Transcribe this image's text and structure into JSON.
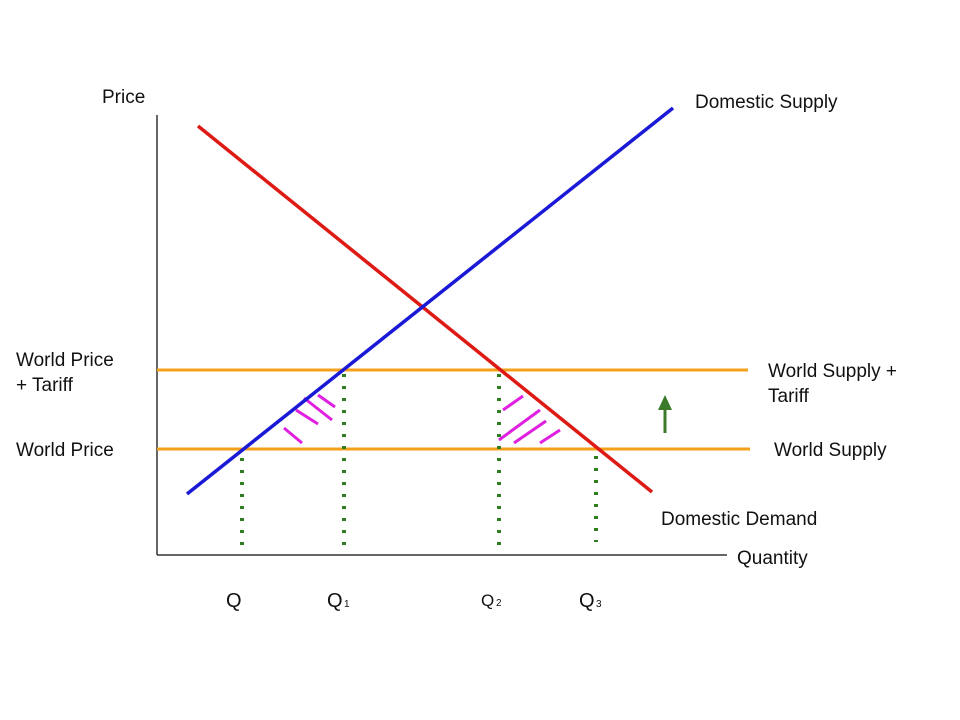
{
  "axes": {
    "y_label": "Price",
    "x_label": "Quantity"
  },
  "price_labels": {
    "world_price_tariff_line1": "World Price",
    "world_price_tariff_line2": "+ Tariff",
    "world_price": "World Price"
  },
  "curve_labels": {
    "domestic_supply": "Domestic Supply",
    "domestic_demand": "Domestic Demand",
    "world_supply_tariff_line1": "World Supply +",
    "world_supply_tariff_line2": "Tariff",
    "world_supply": "World Supply"
  },
  "quantity_labels": {
    "q": "Q",
    "q1_main": "Q",
    "q1_sub": "1",
    "q2_main": "Q",
    "q2_sub": "2",
    "q3_main": "Q",
    "q3_sub": "3"
  },
  "colors": {
    "supply": "#1a1ad6",
    "demand": "#dd1a14",
    "world_lines": "#f5a01a",
    "guides": "#2e7d1e",
    "deadweight_hatch": "#e020e0",
    "arrow": "#3a7a2a",
    "axes": "#333333"
  },
  "annotations": {
    "deadweight_loss_areas": 2,
    "arrow_direction": "up"
  }
}
